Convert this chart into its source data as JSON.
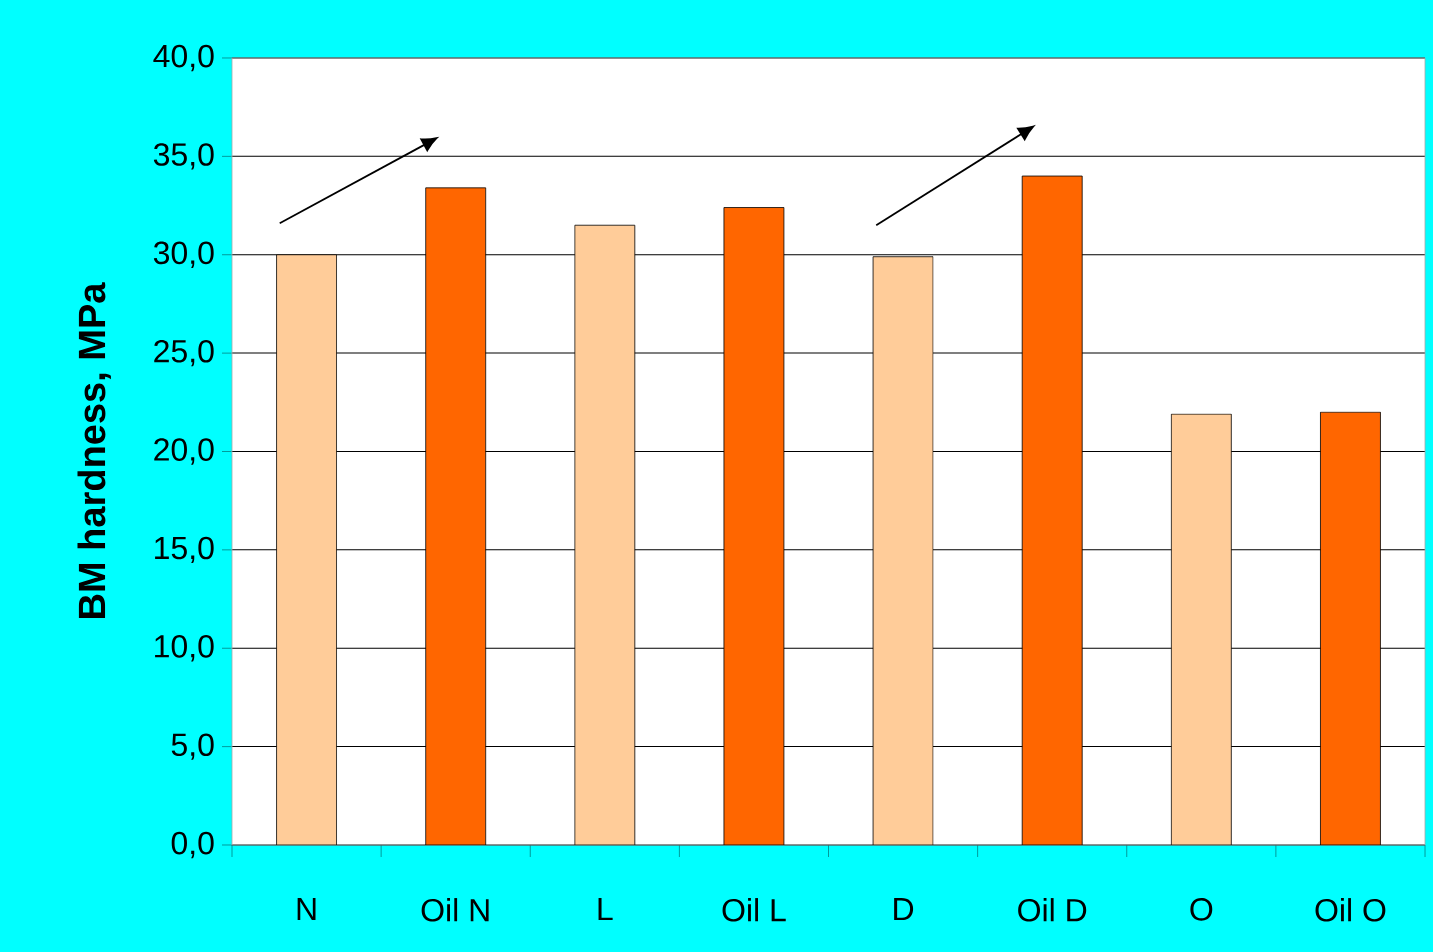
{
  "chart_data": {
    "type": "bar",
    "ylabel": "BM hardness, MPa",
    "categories": [
      "N",
      "Oil N",
      "L",
      "Oil L",
      "D",
      "Oil D",
      "O",
      "Oil O"
    ],
    "values": [
      30.0,
      33.4,
      31.5,
      32.4,
      29.9,
      34.0,
      21.9,
      22.0
    ],
    "colors": [
      "#ffcc99",
      "#ff6600",
      "#ffcc99",
      "#ff6600",
      "#ffcc99",
      "#ff6600",
      "#ffcc99",
      "#ff6600"
    ],
    "ylim": [
      0,
      40
    ],
    "yticks": [
      {
        "value": 0,
        "label": "0,0"
      },
      {
        "value": 5,
        "label": "5,0"
      },
      {
        "value": 10,
        "label": "10,0"
      },
      {
        "value": 15,
        "label": "15,0"
      },
      {
        "value": 20,
        "label": "20,0"
      },
      {
        "value": 25,
        "label": "25,0"
      },
      {
        "value": 30,
        "label": "30,0"
      },
      {
        "value": 35,
        "label": "35,0"
      },
      {
        "value": 40,
        "label": "40,0"
      }
    ],
    "grid": "y"
  }
}
